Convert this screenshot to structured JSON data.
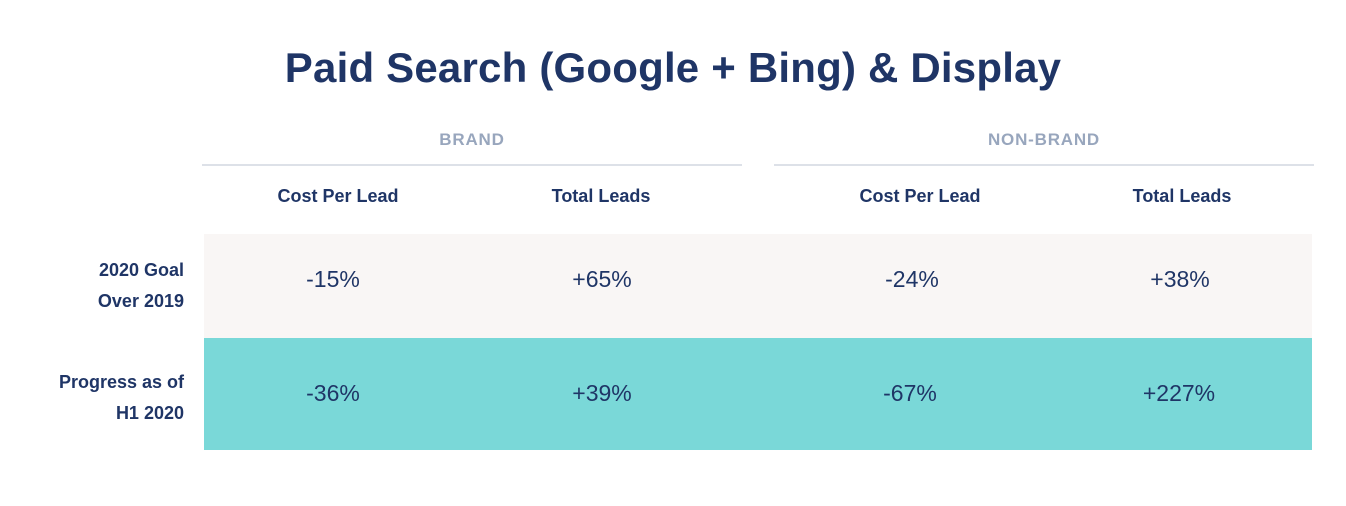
{
  "chart_data": {
    "type": "table",
    "title": "Paid Search (Google + Bing) & Display",
    "groups": [
      {
        "label": "BRAND",
        "columns": [
          "Cost Per Lead",
          "Total Leads"
        ]
      },
      {
        "label": "NON-BRAND",
        "columns": [
          "Cost Per Lead",
          "Total Leads"
        ]
      }
    ],
    "rows": [
      {
        "label_lines": [
          "2020 Goal",
          "Over 2019"
        ],
        "values": [
          "-15%",
          "+65%",
          "-24%",
          "+38%"
        ]
      },
      {
        "label_lines": [
          "Progress as of",
          "H1 2020"
        ],
        "values": [
          "-36%",
          "+39%",
          "-67%",
          "+227%"
        ]
      }
    ]
  },
  "colors": {
    "title": "#1f3566",
    "group_label": "#98a6bd",
    "divider": "#dde1e8",
    "goal_row_bg": "#f9f6f5",
    "progress_row_bg": "#7ad8d8"
  }
}
